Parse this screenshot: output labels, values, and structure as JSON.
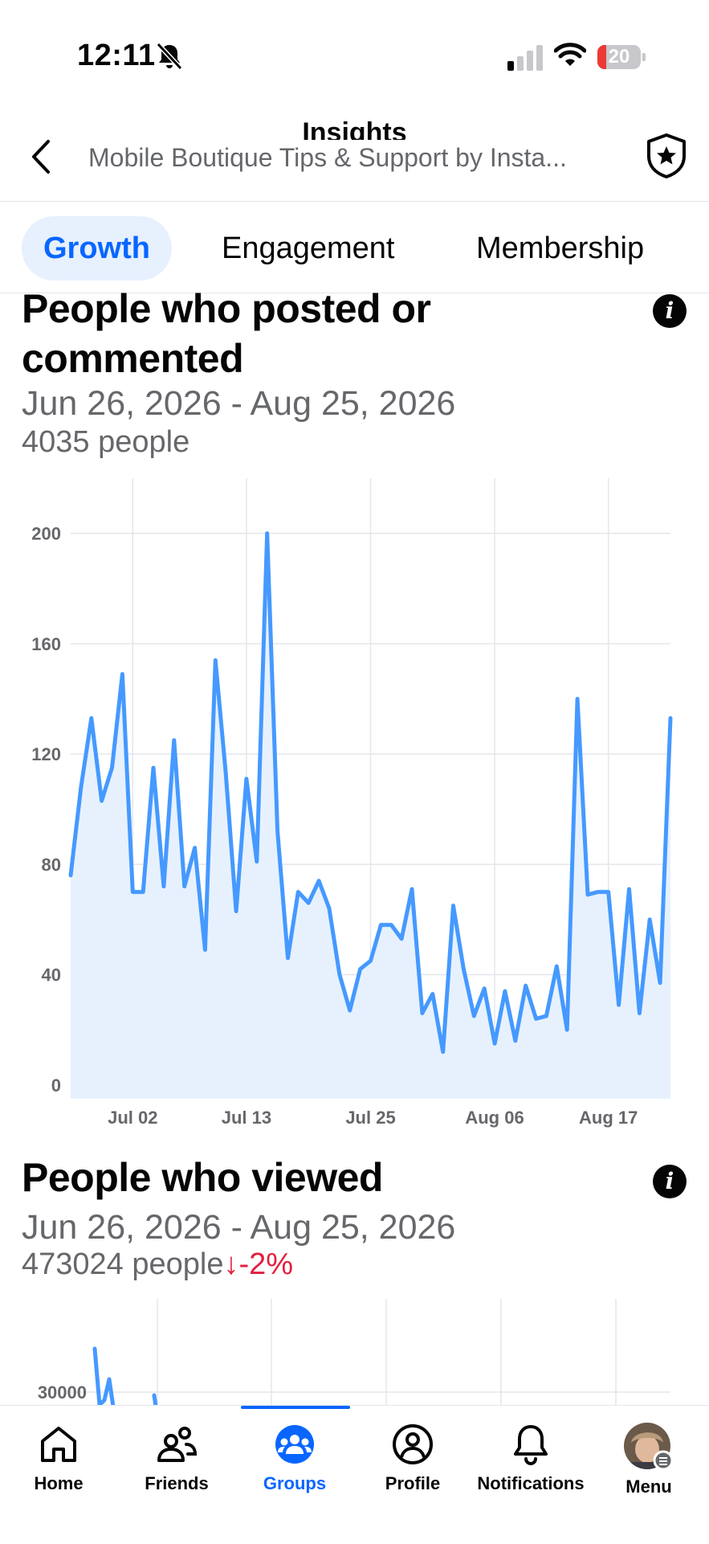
{
  "status_bar": {
    "time": "12:11",
    "battery": "20",
    "battery_level": 0.2
  },
  "header": {
    "title": "Insights",
    "subtitle": "Mobile Boutique Tips & Support by Insta..."
  },
  "tabs": [
    {
      "label": "Growth",
      "active": true
    },
    {
      "label": "Engagement",
      "active": false
    },
    {
      "label": "Membership",
      "active": false
    }
  ],
  "posted": {
    "title": "People who posted or commented",
    "date_range": "Jun 26, 2026 - Aug 25, 2026",
    "count": "4035 people"
  },
  "viewed": {
    "title": "People who viewed",
    "date_range": "Jun 26, 2026 - Aug 25, 2026",
    "count": "473024 people",
    "delta": "↓-2%"
  },
  "chart_data": [
    {
      "type": "area",
      "y_ticks": [
        0,
        40,
        80,
        120,
        160,
        200
      ],
      "x_ticks": [
        "Jul 02",
        "Jul 13",
        "Jul 25",
        "Aug 06",
        "Aug 17"
      ],
      "ylim": [
        -5,
        220
      ],
      "color": "#4599ff",
      "fill": "#e7f1fd",
      "values": [
        76,
        108,
        133,
        103,
        115,
        149,
        70,
        70,
        115,
        72,
        125,
        72,
        86,
        49,
        154,
        113,
        63,
        111,
        81,
        200,
        92,
        46,
        70,
        66,
        74,
        64,
        40,
        27,
        42,
        45,
        58,
        58,
        53,
        71,
        26,
        33,
        12,
        65,
        42,
        25,
        35,
        15,
        34,
        16,
        36,
        24,
        25,
        43,
        20,
        140,
        69,
        70,
        70,
        29,
        71,
        26,
        60,
        37,
        133
      ]
    },
    {
      "type": "line",
      "y_ticks": [
        30000
      ],
      "color": "#4599ff"
    }
  ],
  "nav": [
    {
      "label": "Home",
      "icon": "home-icon"
    },
    {
      "label": "Friends",
      "icon": "friends-icon"
    },
    {
      "label": "Groups",
      "icon": "groups-icon",
      "active": true
    },
    {
      "label": "Profile",
      "icon": "profile-icon"
    },
    {
      "label": "Notifications",
      "icon": "bell-icon"
    },
    {
      "label": "Menu",
      "icon": "menu-avatar-icon"
    }
  ]
}
